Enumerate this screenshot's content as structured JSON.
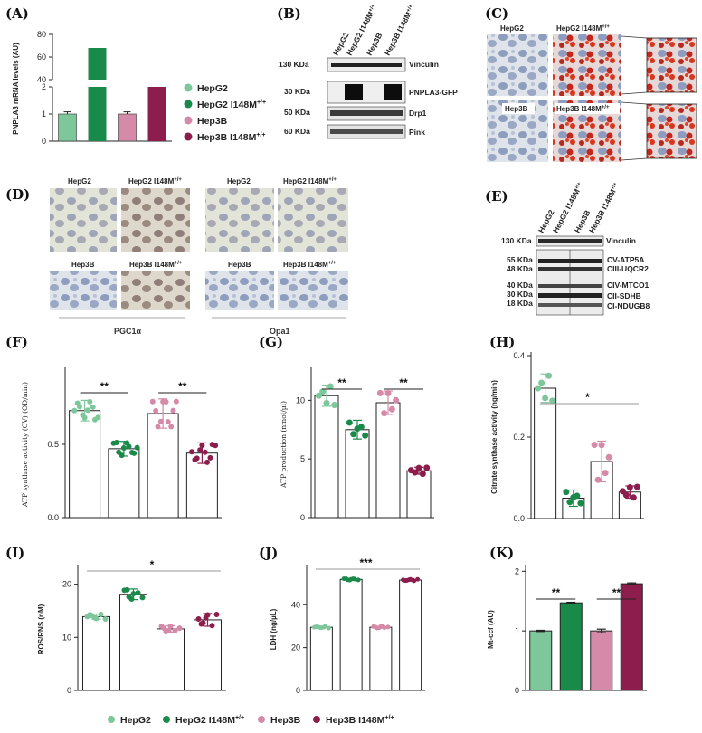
{
  "panels": {
    "A": {
      "label": "(A)",
      "chart_data": {
        "type": "bar",
        "categories": [
          "HepG2",
          "HepG2 I148M+/+",
          "Hep3B",
          "Hep3B I148M+/+"
        ],
        "values": [
          1.0,
          68,
          1.0,
          40
        ],
        "errors": [
          0.08,
          0,
          0.08,
          0
        ],
        "ylabel": "PNPLA3 mRNA levels (AU)",
        "axis_break": [
          2,
          40
        ],
        "ticks_lower": [
          "0",
          "1",
          "2"
        ],
        "ticks_upper": [
          "40",
          "60",
          "80"
        ],
        "colors": [
          "#7ec79b",
          "#1a8a4a",
          "#d48aa8",
          "#8c1d4c"
        ]
      },
      "legend": [
        {
          "name": "HepG2",
          "color": "#7ec79b"
        },
        {
          "name": "HepG2 I148M",
          "sup": "+/+",
          "color": "#1a8a4a"
        },
        {
          "name": "Hep3B",
          "color": "#d48aa8"
        },
        {
          "name": "Hep3B I148M",
          "sup": "+/+",
          "color": "#8c1d4c"
        }
      ]
    },
    "B": {
      "label": "(B)",
      "lanes": [
        "HepG2",
        "HepG2 I148M",
        "Hep3B",
        "Hep3B I148M"
      ],
      "lane_sup": "+/+",
      "rows": [
        {
          "kda": "130 KDa",
          "protein": "Vinculin"
        },
        {
          "kda": "30 KDa",
          "protein": "PNPLA3-GFP"
        },
        {
          "kda": "50 KDa",
          "protein": "Drp1"
        },
        {
          "kda": "60 KDa",
          "protein": "Pink"
        }
      ]
    },
    "C": {
      "label": "(C)",
      "images": [
        "HepG2",
        "HepG2 I148M",
        "Hep3B",
        "Hep3B I148M"
      ],
      "sup": "+/+"
    },
    "D": {
      "label": "(D)",
      "images": [
        "HepG2",
        "HepG2 I148M",
        "Hep3B",
        "Hep3B I148M"
      ],
      "sup": "+/+",
      "groups": [
        "PGC1α",
        "Opa1"
      ]
    },
    "E": {
      "label": "(E)",
      "lanes": [
        "HepG2",
        "HepG2 I148M",
        "Hep3B",
        "Hep3B I148M"
      ],
      "lane_sup": "+/+",
      "top": {
        "kda": "130 KDa",
        "protein": "Vinculin"
      },
      "kda": [
        "55 KDa",
        "48 KDa",
        "40 KDa",
        "30 KDa",
        "18 KDa"
      ],
      "proteins": [
        "CV-ATP5A",
        "CIII-UQCR2",
        "CIV-MTCO1",
        "CII-SDHB",
        "CI-NDUGB8"
      ]
    },
    "F": {
      "label": "(F)",
      "chart_data": {
        "type": "bar",
        "categories": [
          "HepG2",
          "HepG2 I148M+/+",
          "Hep3B",
          "Hep3B I148M+/+"
        ],
        "values": [
          0.73,
          0.47,
          0.71,
          0.44
        ],
        "errors": [
          0.07,
          0.05,
          0.1,
          0.07
        ],
        "ylabel": "ATP synthase activity (CV) (OD/min)",
        "ylim": [
          0,
          1.0
        ],
        "yticks": [
          "0.0",
          "0.5"
        ],
        "significance": [
          "**",
          "**"
        ]
      }
    },
    "G": {
      "label": "(G)",
      "chart_data": {
        "type": "bar",
        "categories": [
          "HepG2",
          "HepG2 I148M+/+",
          "Hep3B",
          "Hep3B I148M+/+"
        ],
        "values": [
          10.4,
          7.5,
          9.8,
          4.0
        ],
        "errors": [
          0.9,
          0.8,
          1.0,
          0.3
        ],
        "ylabel": "ATP production (nmol/µl)",
        "ylim": [
          0,
          12.5
        ],
        "yticks": [
          "0",
          "5",
          "10"
        ],
        "significance": [
          "**",
          "**"
        ]
      }
    },
    "H": {
      "label": "(H)",
      "chart_data": {
        "type": "bar",
        "categories": [
          "HepG2",
          "HepG2 I148M+/+",
          "Hep3B",
          "Hep3B I148M+/+"
        ],
        "values": [
          0.32,
          0.05,
          0.14,
          0.065
        ],
        "errors": [
          0.035,
          0.02,
          0.05,
          0.015
        ],
        "ylabel": "Citrate synthase activity (ng/min)",
        "ylim": [
          0,
          0.4
        ],
        "yticks": [
          "0.0",
          "0.2",
          "0.4"
        ],
        "significance": [
          "*"
        ]
      }
    },
    "I": {
      "label": "(I)",
      "chart_data": {
        "type": "bar",
        "categories": [
          "HepG2",
          "HepG2 I148M+/+",
          "Hep3B",
          "Hep3B I148M+/+"
        ],
        "values": [
          13.9,
          18.1,
          11.6,
          13.3
        ],
        "errors": [
          0.5,
          1.0,
          0.6,
          1.2
        ],
        "ylabel": "ROS/RNS (nM)",
        "ylim": [
          0,
          23
        ],
        "yticks": [
          "0",
          "10",
          "20"
        ],
        "significance": [
          "*"
        ]
      }
    },
    "J": {
      "label": "(J)",
      "chart_data": {
        "type": "bar",
        "categories": [
          "HepG2",
          "HepG2 I148M+/+",
          "Hep3B",
          "Hep3B I148M+/+"
        ],
        "values": [
          29.5,
          51.8,
          29.5,
          51.5
        ],
        "errors": [
          0.4,
          0.4,
          0.4,
          0.4
        ],
        "ylabel": "LDH (ng/µL)",
        "ylim": [
          0,
          57
        ],
        "yticks": [
          "0",
          "20",
          "40"
        ],
        "significance": [
          "***"
        ]
      }
    },
    "K": {
      "label": "(K)",
      "chart_data": {
        "type": "bar",
        "categories": [
          "HepG2",
          "HepG2 I148M+/+",
          "Hep3B",
          "Hep3B I148M+/+"
        ],
        "values": [
          1.0,
          1.47,
          1.0,
          1.79
        ],
        "errors": [
          0.01,
          0.01,
          0.03,
          0.015
        ],
        "ylabel": "Mt-ccf (AU)",
        "ylim": [
          0,
          2.05
        ],
        "yticks": [
          "0",
          "1",
          "2"
        ],
        "significance": [
          "**",
          "**"
        ],
        "colors": [
          "#7ec79b",
          "#1a8a4a",
          "#d48aa8",
          "#8c1d4c"
        ]
      }
    }
  },
  "point_colors": [
    "#7ec79b",
    "#1a8a4a",
    "#d48aa8",
    "#8c1d4c"
  ],
  "bottom_legend": [
    {
      "name": "HepG2",
      "color": "#7ec79b"
    },
    {
      "name": "HepG2 I148M",
      "sup": "+/+",
      "color": "#1a8a4a"
    },
    {
      "name": "Hep3B",
      "color": "#d48aa8"
    },
    {
      "name": "Hep3B I148M",
      "sup": "+/+",
      "color": "#8c1d4c"
    }
  ]
}
